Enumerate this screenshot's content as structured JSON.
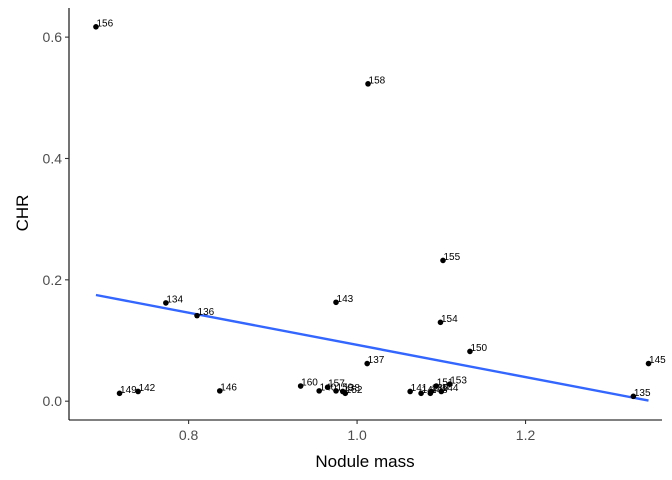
{
  "chart_data": {
    "type": "scatter",
    "xlabel": "Nodule mass",
    "ylabel": "CHR",
    "xlim": [
      0.658,
      1.362
    ],
    "ylim": [
      -0.031,
      0.648
    ],
    "x_ticks": [
      0.8,
      1.0,
      1.2
    ],
    "x_tick_labels": [
      "0.8",
      "1.0",
      "1.2"
    ],
    "y_ticks": [
      0.0,
      0.2,
      0.4,
      0.6
    ],
    "y_tick_labels": [
      "0.0",
      "0.2",
      "0.4",
      "0.6"
    ],
    "grid": false,
    "points": [
      {
        "label": "156",
        "x": 0.69,
        "y": 0.617
      },
      {
        "label": "158",
        "x": 1.013,
        "y": 0.523
      },
      {
        "label": "155",
        "x": 1.102,
        "y": 0.232
      },
      {
        "label": "134",
        "x": 0.773,
        "y": 0.162
      },
      {
        "label": "143",
        "x": 0.975,
        "y": 0.163
      },
      {
        "label": "136",
        "x": 0.81,
        "y": 0.141
      },
      {
        "label": "154",
        "x": 1.099,
        "y": 0.13
      },
      {
        "label": "150",
        "x": 1.134,
        "y": 0.082
      },
      {
        "label": "137",
        "x": 1.012,
        "y": 0.062
      },
      {
        "label": "145",
        "x": 1.346,
        "y": 0.062
      },
      {
        "label": "149",
        "x": 0.718,
        "y": 0.013
      },
      {
        "label": "142",
        "x": 0.74,
        "y": 0.016
      },
      {
        "label": "146",
        "x": 0.837,
        "y": 0.017
      },
      {
        "label": "160",
        "x": 0.933,
        "y": 0.025
      },
      {
        "label": "157",
        "x": 0.965,
        "y": 0.023
      },
      {
        "label": "140",
        "x": 0.955,
        "y": 0.017
      },
      {
        "label": "159",
        "x": 0.975,
        "y": 0.017
      },
      {
        "label": "138",
        "x": 0.983,
        "y": 0.016
      },
      {
        "label": "152",
        "x": 0.986,
        "y": 0.013
      },
      {
        "label": "141",
        "x": 1.063,
        "y": 0.016
      },
      {
        "label": "147",
        "x": 1.076,
        "y": 0.013
      },
      {
        "label": "139",
        "x": 1.088,
        "y": 0.016
      },
      {
        "label": "148",
        "x": 1.087,
        "y": 0.013
      },
      {
        "label": "151",
        "x": 1.094,
        "y": 0.025
      },
      {
        "label": "153",
        "x": 1.11,
        "y": 0.028
      },
      {
        "label": "144",
        "x": 1.1,
        "y": 0.016
      },
      {
        "label": "135",
        "x": 1.328,
        "y": 0.008
      }
    ],
    "trend_line": {
      "color": "#3366ff",
      "x": [
        0.69,
        1.346
      ],
      "y": [
        0.175,
        0.001
      ]
    },
    "colors": {
      "points": "#000000",
      "axis": "#000000",
      "trend": "#3366ff"
    }
  }
}
